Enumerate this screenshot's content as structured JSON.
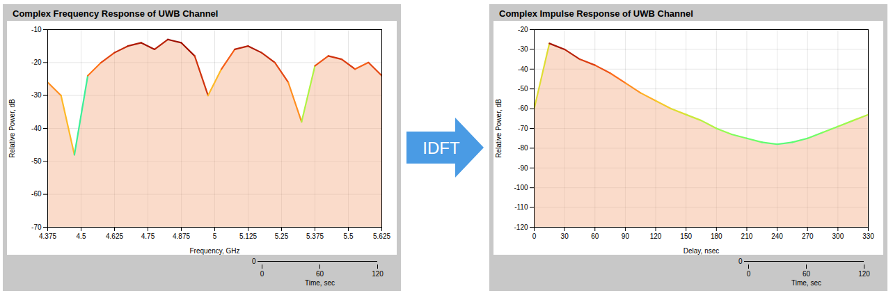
{
  "chart_data": [
    {
      "type": "line",
      "title": "Complex Frequency Response of UWB Channel",
      "x_label": "Frequency, GHz",
      "y_label": "Relative Power, dB",
      "z_label": "Time, sec",
      "xlim": [
        4.375,
        5.625
      ],
      "xticks": [
        4.375,
        4.5,
        4.625,
        4.75,
        4.875,
        5,
        5.125,
        5.25,
        5.375,
        5.5,
        5.625
      ],
      "ylim": [
        -70,
        -10
      ],
      "yticks": [
        -70,
        -60,
        -50,
        -40,
        -30,
        -20,
        -10
      ],
      "zlim": [
        0,
        120
      ],
      "zticks": [
        0,
        60,
        120
      ],
      "grid": true,
      "x": [
        4.375,
        4.425,
        4.475,
        4.525,
        4.575,
        4.625,
        4.675,
        4.725,
        4.775,
        4.825,
        4.875,
        4.925,
        4.975,
        5.025,
        5.075,
        5.125,
        5.175,
        5.225,
        5.275,
        5.325,
        5.375,
        5.425,
        5.475,
        5.525,
        5.575,
        5.625
      ],
      "values": [
        -26,
        -30,
        -48,
        -24,
        -20,
        -17,
        -15,
        -14,
        -16,
        -13,
        -14,
        -18,
        -30,
        -22,
        -16,
        -15,
        -17,
        -20,
        -26,
        -38,
        -21,
        -18,
        -19,
        -22,
        -20,
        -24
      ]
    },
    {
      "type": "line",
      "title": "Complex Impulse Response of UWB Channel",
      "x_label": "Delay, nsec",
      "y_label": "Relative Power, dB",
      "z_label": "Time, sec",
      "xlim": [
        0,
        330
      ],
      "xticks": [
        0,
        30,
        60,
        90,
        120,
        150,
        180,
        210,
        240,
        270,
        300,
        330
      ],
      "ylim": [
        -120,
        -20
      ],
      "yticks": [
        -120,
        -110,
        -100,
        -90,
        -80,
        -70,
        -60,
        -50,
        -40,
        -30,
        -20
      ],
      "zlim": [
        0,
        120
      ],
      "zticks": [
        0,
        60,
        120
      ],
      "grid": true,
      "x": [
        0,
        15,
        30,
        45,
        60,
        75,
        90,
        105,
        120,
        135,
        150,
        165,
        180,
        195,
        210,
        225,
        240,
        255,
        270,
        285,
        300,
        315,
        330
      ],
      "values": [
        -60,
        -27,
        -30,
        -35,
        -38,
        -42,
        -47,
        -52,
        -56,
        -60,
        -63,
        -66,
        -70,
        -73,
        -75,
        -77,
        -78,
        -77,
        -75,
        -72,
        -69,
        -66,
        -63
      ]
    }
  ],
  "arrow": {
    "label": "IDFT"
  }
}
